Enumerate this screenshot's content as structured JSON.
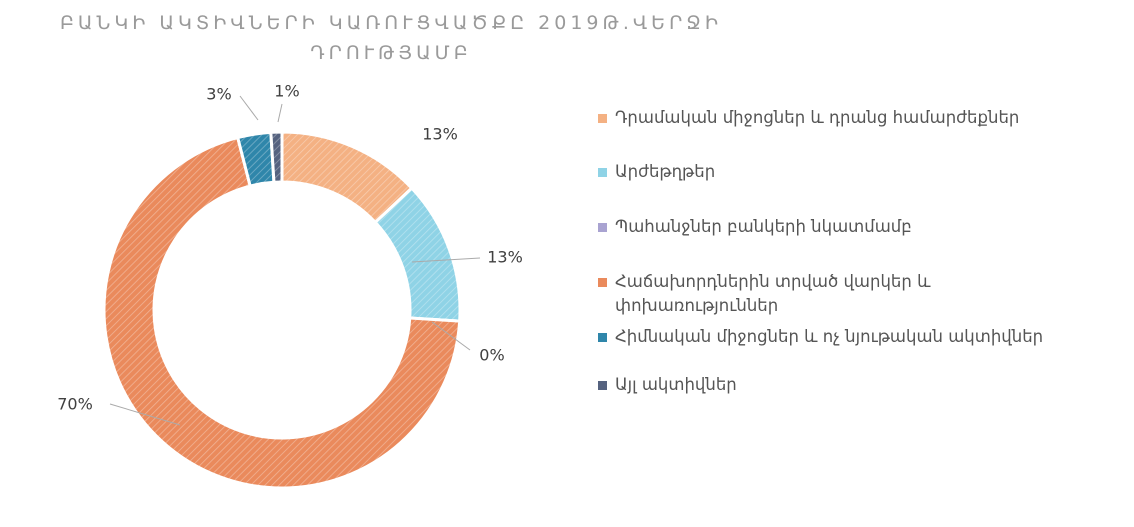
{
  "chart_data": {
    "type": "donut",
    "title": "ԲԱՆԿԻ ԱԿՏԻՎՆԵՐԻ ԿԱՌՈՒՑՎԱԾՔԸ 2019Թ.ՎԵՐՋԻ ԴՐՈՒԹՅԱՄԲ",
    "categories": [
      "Դրամական միջոցներ և դրանց համարժեքներ",
      "Արժեթղթեր",
      "Պահանջներ բանկերի նկատմամբ",
      "Հաճախորդներին տրված վարկեր և փոխառություններ",
      "Հիմնական միջոցներ և ոչ նյութական ակտիվներ",
      "Այլ ակտիվներ"
    ],
    "values": [
      13,
      13,
      0,
      70,
      3,
      1
    ],
    "value_labels": [
      "13%",
      "13%",
      "0%",
      "70%",
      "3%",
      "1%"
    ],
    "colors": [
      "#f4b183",
      "#8fd3e6",
      "#a9a3d1",
      "#ea8a5c",
      "#2f86aa",
      "#55627f"
    ],
    "legend": "right"
  }
}
